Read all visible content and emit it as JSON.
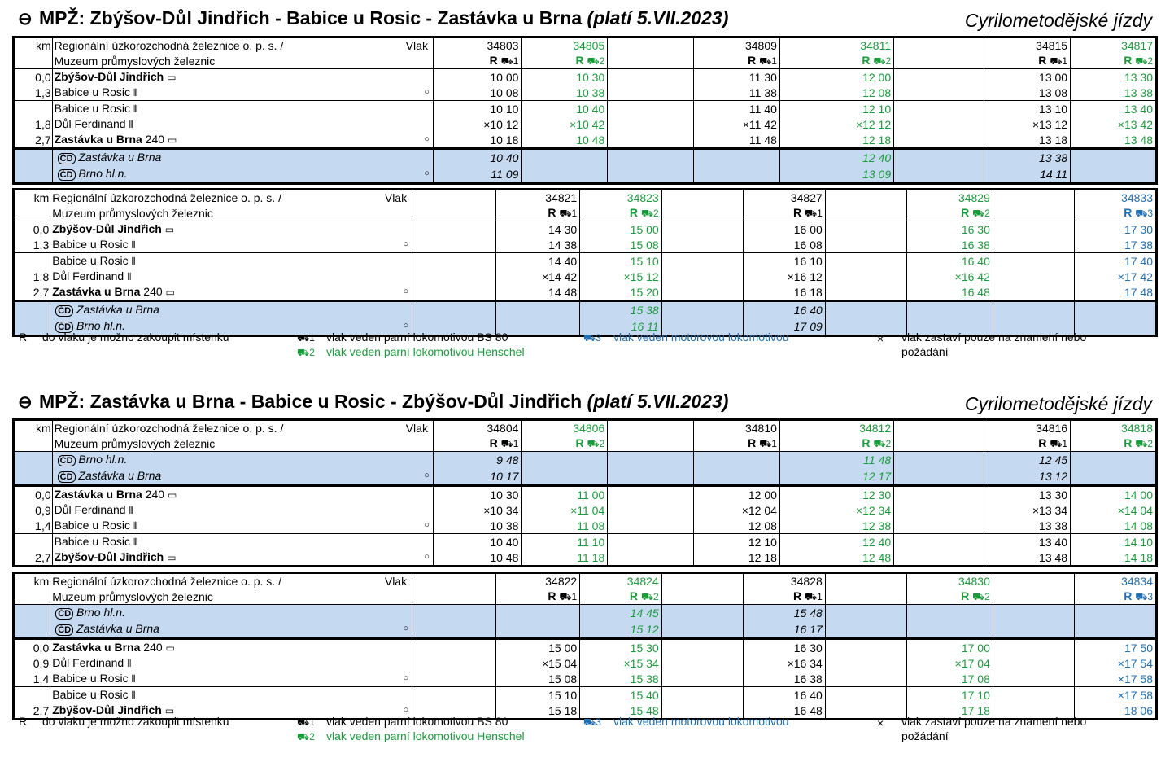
{
  "section1": {
    "arrow": "⮈",
    "title": "MPŽ: Zbýšov-Důl Jindřich - Babice u Rosic - Zastávka u Brna",
    "valid": "(platí 5.VII.2023)",
    "right_label": "Cyrilometodějské jízdy",
    "table_a": {
      "operator_line1": "Regionální úzkorozchodná železnice o. p. s. /",
      "operator_line2": "Muzeum průmyslových železnic",
      "vlak": "Vlak",
      "trains": [
        {
          "col": 1,
          "num": "34803",
          "cat": "R ⛟1",
          "color": "k"
        },
        {
          "col": 2,
          "num": "34805",
          "cat": "R ⛟2",
          "color": "g"
        },
        {
          "col": 4,
          "num": "34809",
          "cat": "R ⛟1",
          "color": "k"
        },
        {
          "col": 5,
          "num": "34811",
          "cat": "R ⛟2",
          "color": "g"
        },
        {
          "col": 7,
          "num": "34815",
          "cat": "R ⛟1",
          "color": "k"
        },
        {
          "col": 8,
          "num": "34817",
          "cat": "R ⛟2",
          "color": "g"
        }
      ]
    },
    "table_b": {
      "trains": [
        {
          "num": "34821",
          "cat": "R ⛟1"
        },
        {
          "num": "34823",
          "cat": "R ⛟2"
        },
        {
          "num": "34827",
          "cat": "R ⛟1"
        },
        {
          "num": "34829",
          "cat": "R ⛟2"
        },
        {
          "num": "34833",
          "cat": "R ⛟3"
        }
      ]
    }
  },
  "section2": {
    "arrow": "⮈",
    "title": "MPŽ: Zastávka u Brna - Babice u Rosic - Zbýšov-Důl Jindřich",
    "valid": "(platí 5.VII.2023)",
    "right_label": "Cyrilometodějské jízdy"
  },
  "stations_fwd": {
    "zbysov": "Zbýšov-Důl Jindřich",
    "babice": "Babice u Rosic",
    "dul": "Důl Ferdinand",
    "zastavka": "Zastávka u Brna",
    "zastavka_num": "240",
    "brno": "Brno hl.n."
  },
  "km": {
    "k0": "0,0",
    "k13": "1,3",
    "k18": "1,8",
    "k27": "2,7",
    "k09": "0,9",
    "k14": "1,4"
  },
  "headers": {
    "km": "km"
  },
  "legend": {
    "r": "R",
    "r_text": "do vlaku je možno zakoupit místenku",
    "l1": "⛟1",
    "l1_text": "vlak veden parní lokomotivou BS 80",
    "l2": "⛟2",
    "l2_text": "vlak veden parní lokomotivou Henschel",
    "l3": "⛟3",
    "l3_text": "vlak veden motorovou lokomotivou",
    "x": "×",
    "x_text1": "vlak zastaví pouze na znamení nebo",
    "x_text2": "požádání"
  },
  "t1": {
    "rows": [
      [
        "10 00",
        "10 30",
        "",
        "11 30",
        "12 00",
        "",
        "13 00",
        "13 30"
      ],
      [
        "10 08",
        "10 38",
        "",
        "11 38",
        "12 08",
        "",
        "13 08",
        "13 38"
      ],
      [
        "10 10",
        "10 40",
        "",
        "11 40",
        "12 10",
        "",
        "13 10",
        "13 40"
      ],
      [
        "×10 12",
        "×10 42",
        "",
        "×11 42",
        "×12 12",
        "",
        "×13 12",
        "×13 42"
      ],
      [
        "10 18",
        "10 48",
        "",
        "11 48",
        "12 18",
        "",
        "13 18",
        "13 48"
      ],
      [
        "10 40",
        "",
        "",
        "",
        "12 40",
        "",
        "13 38",
        ""
      ],
      [
        "11 09",
        "",
        "",
        "",
        "13 09",
        "",
        "14 11",
        ""
      ]
    ]
  },
  "t2": {
    "rows": [
      [
        "",
        "14 30",
        "15 00",
        "",
        "16 00",
        "",
        "16 30",
        "",
        "17 30"
      ],
      [
        "",
        "14 38",
        "15 08",
        "",
        "16 08",
        "",
        "16 38",
        "",
        "17 38"
      ],
      [
        "",
        "14 40",
        "15 10",
        "",
        "16 10",
        "",
        "16 40",
        "",
        "17 40"
      ],
      [
        "",
        "×14 42",
        "×15 12",
        "",
        "×16 12",
        "",
        "×16 42",
        "",
        "×17 42"
      ],
      [
        "",
        "14 48",
        "15 20",
        "",
        "16 18",
        "",
        "16 48",
        "",
        "17 48"
      ],
      [
        "",
        "",
        "15 38",
        "",
        "16 40",
        "",
        "",
        "",
        ""
      ],
      [
        "",
        "",
        "16 11",
        "",
        "17 09",
        "",
        "",
        "",
        ""
      ]
    ]
  },
  "t3": {
    "trains": [
      {
        "num": "34804",
        "cat": "R ⛟1"
      },
      {
        "num": "34806",
        "cat": "R ⛟2"
      },
      {
        "num": "34810",
        "cat": "R ⛟1"
      },
      {
        "num": "34812",
        "cat": "R ⛟2"
      },
      {
        "num": "34816",
        "cat": "R ⛟1"
      },
      {
        "num": "34818",
        "cat": "R ⛟2"
      }
    ],
    "rows": [
      [
        "9 48",
        "",
        "",
        "",
        "11 48",
        "",
        "12 45",
        ""
      ],
      [
        "10 17",
        "",
        "",
        "",
        "12 17",
        "",
        "13 12",
        ""
      ],
      [
        "10 30",
        "11 00",
        "",
        "12 00",
        "12 30",
        "",
        "13 30",
        "14 00"
      ],
      [
        "×10 34",
        "×11 04",
        "",
        "×12 04",
        "×12 34",
        "",
        "×13 34",
        "×14 04"
      ],
      [
        "10 38",
        "11 08",
        "",
        "12 08",
        "12 38",
        "",
        "13 38",
        "14 08"
      ],
      [
        "10 40",
        "11 10",
        "",
        "12 10",
        "12 40",
        "",
        "13 40",
        "14 10"
      ],
      [
        "10 48",
        "11 18",
        "",
        "12 18",
        "12 48",
        "",
        "13 48",
        "14 18"
      ]
    ]
  },
  "t4": {
    "trains": [
      {
        "num": "34822",
        "cat": "R ⛟1"
      },
      {
        "num": "34824",
        "cat": "R ⛟2"
      },
      {
        "num": "34828",
        "cat": "R ⛟1"
      },
      {
        "num": "34830",
        "cat": "R ⛟2"
      },
      {
        "num": "34834",
        "cat": "R ⛟3"
      }
    ],
    "rows": [
      [
        "",
        "",
        "14 45",
        "",
        "15 48",
        "",
        "",
        "",
        ""
      ],
      [
        "",
        "",
        "15 12",
        "",
        "16 17",
        "",
        "",
        "",
        ""
      ],
      [
        "",
        "15 00",
        "15 30",
        "",
        "16 30",
        "",
        "17 00",
        "",
        "17 50"
      ],
      [
        "",
        "×15 04",
        "×15 34",
        "",
        "×16 34",
        "",
        "×17 04",
        "",
        "×17 54"
      ],
      [
        "",
        "15 08",
        "15 38",
        "",
        "16 38",
        "",
        "17 08",
        "",
        "×17 58"
      ],
      [
        "",
        "15 10",
        "15 40",
        "",
        "16 40",
        "",
        "17 10",
        "",
        "×17 58"
      ],
      [
        "",
        "15 18",
        "15 48",
        "",
        "16 48",
        "",
        "17 18",
        "",
        "18 06"
      ]
    ]
  },
  "icons": {
    "bus": "🚌",
    "rail": "⌗",
    "circle": "○",
    "cd": "ČD"
  }
}
